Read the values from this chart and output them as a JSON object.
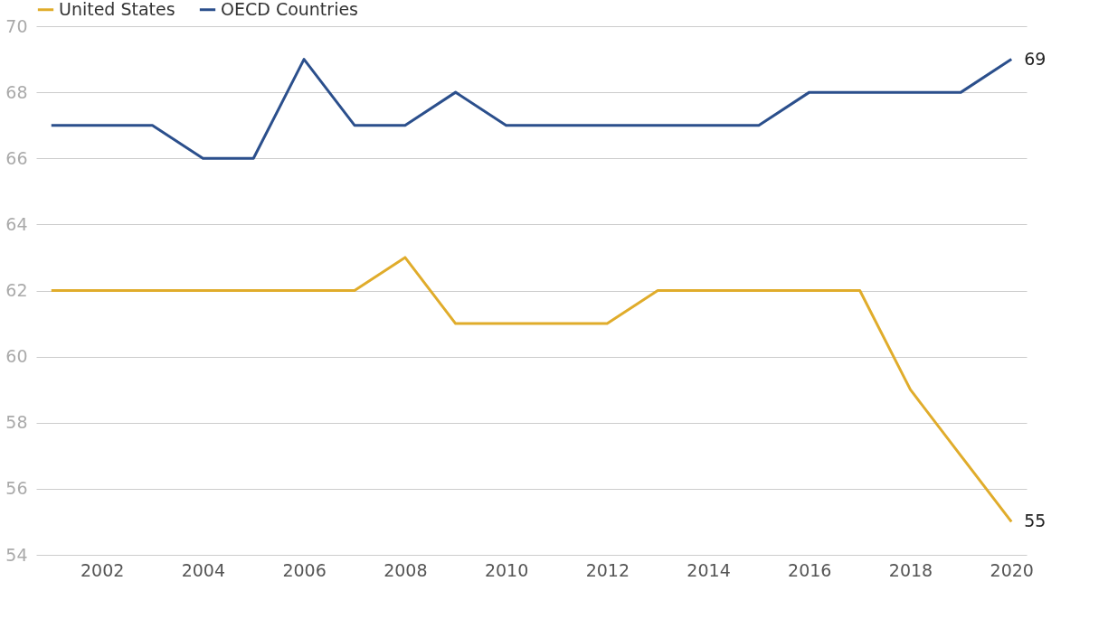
{
  "chart_data": {
    "type": "line",
    "x": [
      2001,
      2002,
      2003,
      2004,
      2005,
      2006,
      2007,
      2008,
      2009,
      2010,
      2011,
      2012,
      2013,
      2014,
      2015,
      2016,
      2017,
      2018,
      2019,
      2020
    ],
    "series": [
      {
        "name": "United States",
        "color": "#e0ac2b",
        "values": [
          62,
          62,
          62,
          62,
          62,
          62,
          62,
          63,
          61,
          61,
          61,
          61,
          62,
          62,
          62,
          62,
          62,
          59,
          57,
          55
        ],
        "value_labels": [
          null,
          null,
          null,
          null,
          null,
          null,
          null,
          null,
          null,
          null,
          null,
          null,
          null,
          null,
          null,
          null,
          null,
          null,
          null,
          "55"
        ]
      },
      {
        "name": "OECD Countries",
        "color": "#2b4f8c",
        "values": [
          67,
          67,
          67,
          66,
          66,
          69,
          67,
          67,
          68,
          67,
          67,
          67,
          67,
          67,
          67,
          68,
          68,
          68,
          68,
          69
        ],
        "value_labels": [
          null,
          null,
          null,
          null,
          null,
          null,
          null,
          null,
          null,
          null,
          null,
          null,
          null,
          null,
          null,
          null,
          null,
          null,
          null,
          "69"
        ]
      }
    ],
    "xlim": [
      2000.7,
      2020.3
    ],
    "xticks": [
      2002,
      2004,
      2006,
      2008,
      2010,
      2012,
      2014,
      2016,
      2018,
      2020
    ],
    "ylim": [
      54,
      70
    ],
    "yticks": [
      54,
      56,
      58,
      60,
      62,
      64,
      66,
      68,
      70
    ],
    "grid": "y",
    "legend": "top left",
    "marker": "none",
    "line_style": "solid"
  }
}
